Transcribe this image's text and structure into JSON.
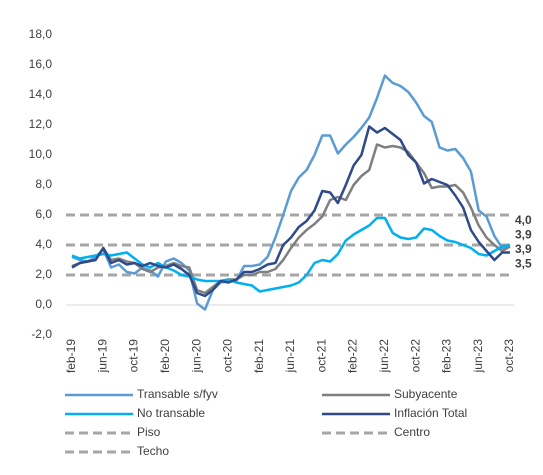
{
  "chart_data": {
    "type": "line",
    "categories": [
      "feb-19",
      null,
      null,
      null,
      "jun-19",
      null,
      null,
      null,
      "oct-19",
      null,
      null,
      null,
      "feb-20",
      null,
      null,
      null,
      "jun-20",
      null,
      null,
      null,
      "oct-20",
      null,
      null,
      null,
      "feb-21",
      null,
      null,
      null,
      "jun-21",
      null,
      null,
      null,
      "oct-21",
      null,
      null,
      null,
      "feb-22",
      null,
      null,
      null,
      "jun-22",
      null,
      null,
      null,
      "oct-22",
      null,
      null,
      null,
      "feb-23",
      null,
      null,
      null,
      "jun-23",
      null,
      null,
      null,
      "oct-23"
    ],
    "ylim": [
      -2,
      18
    ],
    "yticks": [
      {
        "value": -2,
        "label": "-2,0"
      },
      {
        "value": 0,
        "label": "0,0"
      },
      {
        "value": 2,
        "label": "2,0"
      },
      {
        "value": 4,
        "label": "4,0"
      },
      {
        "value": 6,
        "label": "6,0"
      },
      {
        "value": 8,
        "label": "8,0"
      },
      {
        "value": 10,
        "label": "10,0"
      },
      {
        "value": 12,
        "label": "12,0"
      },
      {
        "value": 14,
        "label": "14,0"
      },
      {
        "value": 16,
        "label": "16,0"
      },
      {
        "value": 18,
        "label": "18,0"
      }
    ],
    "series": [
      {
        "name": "Transable s/fyv",
        "color": "#5b9bd5",
        "values": [
          3.2,
          3.0,
          2.9,
          3.2,
          3.7,
          2.5,
          2.7,
          2.2,
          2.1,
          2.5,
          2.3,
          1.9,
          2.9,
          3.1,
          2.8,
          2.3,
          0.1,
          -0.3,
          1.0,
          1.5,
          1.6,
          1.6,
          2.6,
          2.6,
          2.7,
          3.2,
          4.5,
          6.0,
          7.6,
          8.5,
          9.0,
          10.0,
          11.3,
          11.3,
          10.1,
          10.7,
          11.2,
          11.8,
          12.5,
          13.8,
          15.3,
          14.8,
          14.6,
          14.2,
          13.5,
          12.6,
          12.2,
          10.5,
          10.3,
          10.4,
          9.8,
          8.9,
          6.3,
          5.9,
          4.6,
          3.8,
          3.9
        ]
      },
      {
        "name": "Subyacente",
        "color": "#7f7f7f",
        "values": [
          2.6,
          2.8,
          2.9,
          3.0,
          3.8,
          3.0,
          3.1,
          2.9,
          2.8,
          2.4,
          2.2,
          2.5,
          2.6,
          2.8,
          2.6,
          2.5,
          1.0,
          0.8,
          1.2,
          1.6,
          1.7,
          1.7,
          2.0,
          2.0,
          2.2,
          2.2,
          2.4,
          3.0,
          3.8,
          4.5,
          5.0,
          5.4,
          5.9,
          7.0,
          7.2,
          7.0,
          8.0,
          8.6,
          9.0,
          10.7,
          10.5,
          10.6,
          10.5,
          10.2,
          9.5,
          8.8,
          7.8,
          7.9,
          7.9,
          8.0,
          7.5,
          6.5,
          5.3,
          4.5,
          4.0,
          3.6,
          3.9
        ]
      },
      {
        "name": "No transable",
        "color": "#00b0f0",
        "values": [
          3.3,
          3.1,
          3.2,
          3.3,
          3.4,
          3.3,
          3.4,
          3.5,
          3.1,
          2.7,
          2.5,
          2.8,
          2.5,
          2.3,
          2.0,
          1.9,
          1.7,
          1.6,
          1.6,
          1.6,
          1.7,
          1.5,
          1.4,
          1.3,
          0.9,
          1.0,
          1.1,
          1.2,
          1.3,
          1.5,
          2.0,
          2.8,
          3.0,
          2.9,
          3.4,
          4.3,
          4.7,
          5.0,
          5.3,
          5.8,
          5.8,
          4.8,
          4.5,
          4.4,
          4.5,
          5.1,
          5.0,
          4.6,
          4.3,
          4.2,
          4.0,
          3.8,
          3.4,
          3.3,
          3.6,
          3.9,
          4.0
        ]
      },
      {
        "name": "Inflación Total",
        "color": "#2e4a8a",
        "values": [
          2.5,
          2.8,
          2.9,
          3.0,
          3.8,
          2.8,
          3.0,
          2.7,
          2.8,
          2.6,
          2.8,
          2.6,
          2.5,
          2.7,
          2.4,
          2.0,
          0.8,
          0.6,
          1.0,
          1.6,
          1.5,
          1.7,
          2.2,
          2.2,
          2.4,
          2.7,
          2.8,
          4.0,
          4.5,
          5.2,
          5.6,
          6.3,
          7.6,
          7.5,
          6.8,
          8.0,
          9.3,
          10.0,
          11.9,
          11.5,
          11.8,
          11.4,
          11.0,
          10.0,
          9.5,
          8.1,
          8.4,
          8.2,
          8.0,
          7.3,
          6.5,
          5.0,
          4.2,
          3.6,
          3.0,
          3.5,
          3.5
        ]
      }
    ],
    "reference_lines": [
      {
        "name": "Piso",
        "value": 2,
        "color": "#a6a6a6"
      },
      {
        "name": "Centro",
        "value": 4,
        "color": "#a6a6a6"
      },
      {
        "name": "Techo",
        "value": 6,
        "color": "#a6a6a6"
      }
    ],
    "end_labels": [
      {
        "label": "4,0",
        "value": 4.0,
        "color": "#00b0f0"
      },
      {
        "label": "3,9",
        "value": 3.9,
        "color": "#7f7f7f"
      },
      {
        "label": "3,9",
        "value": 3.9,
        "color": "#5b9bd5"
      },
      {
        "label": "3,5",
        "value": 3.5,
        "color": "#2e4a8a"
      }
    ]
  }
}
